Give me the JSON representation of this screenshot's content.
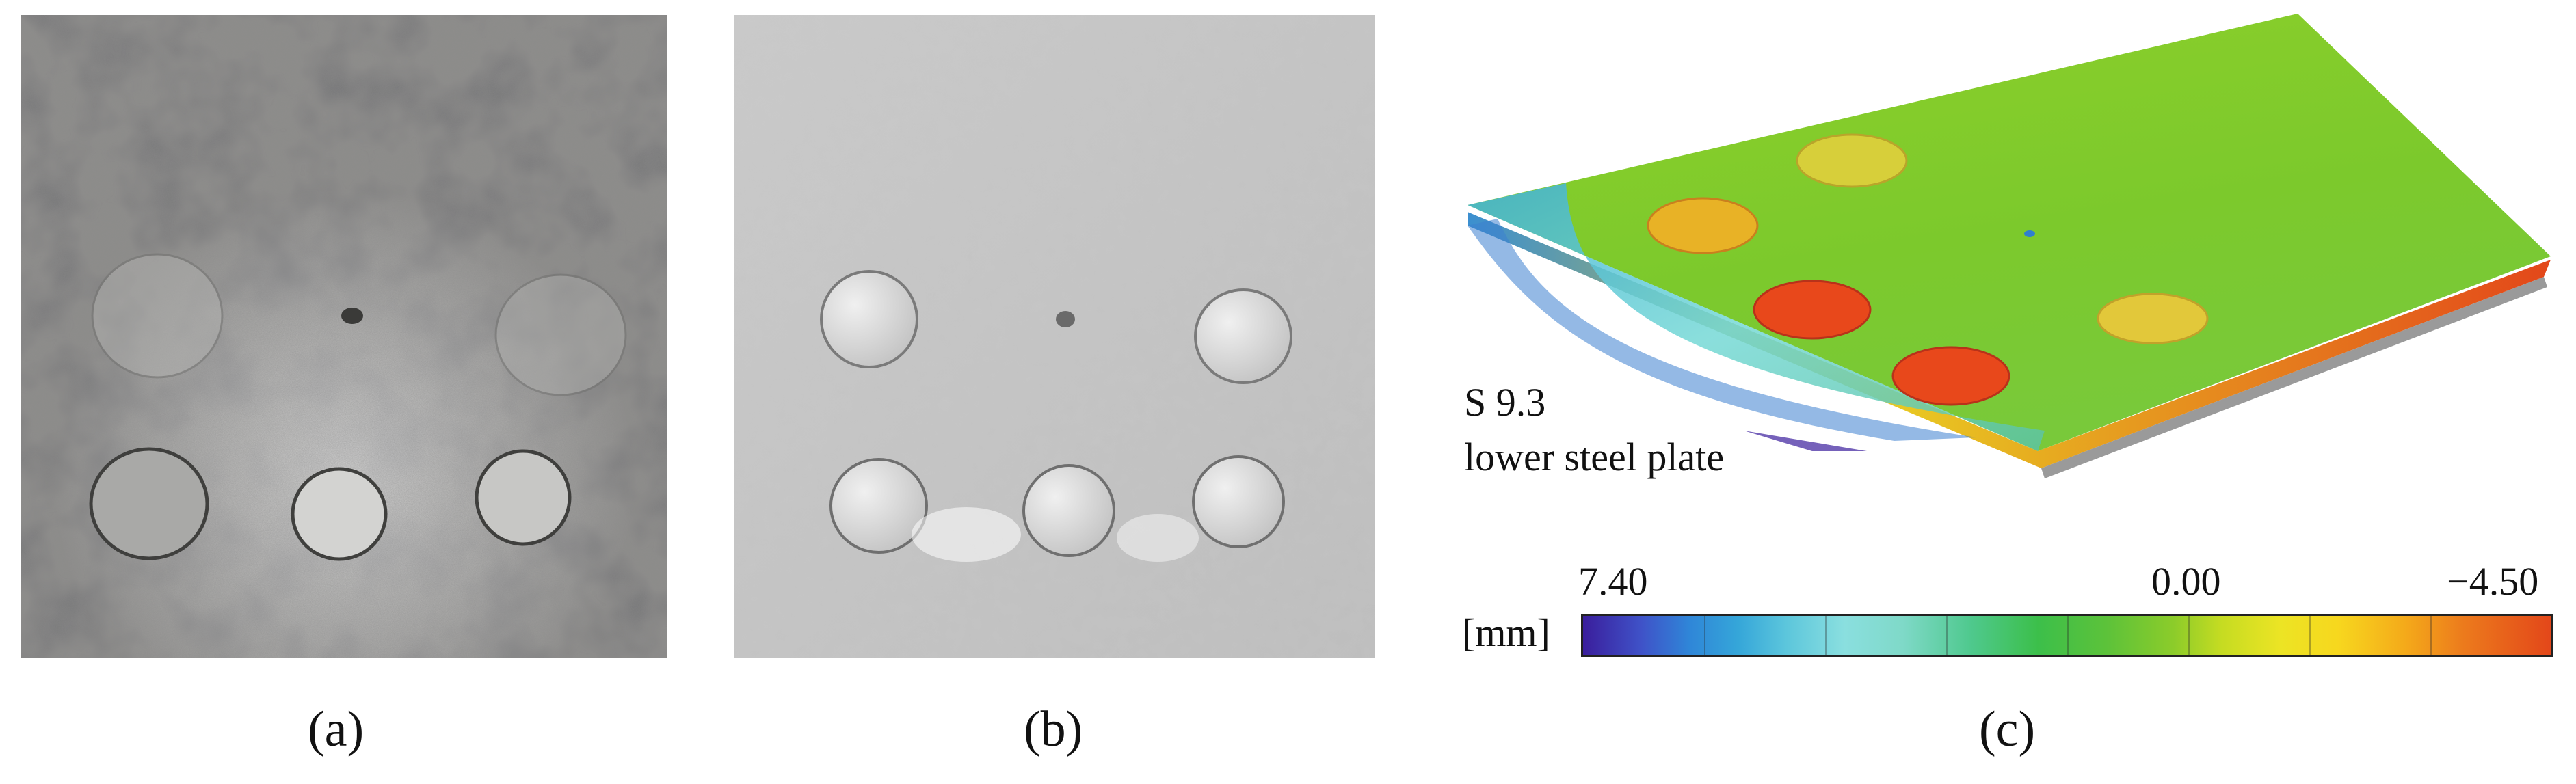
{
  "panels": {
    "a": {
      "caption": "(a)"
    },
    "b": {
      "caption": "(b)"
    },
    "c": {
      "caption": "(c)"
    }
  },
  "deviation_map": {
    "specimen_id": "S 9.3",
    "specimen_description": "lower steel plate",
    "unit": "[mm]",
    "scale_max_label": "7.40",
    "scale_zero_label": "0.00",
    "scale_min_label": "−4.50",
    "colors": {
      "low_end": "#3a1e9c",
      "mid": "#7ccf2a",
      "high_end": "#e3471a"
    }
  }
}
